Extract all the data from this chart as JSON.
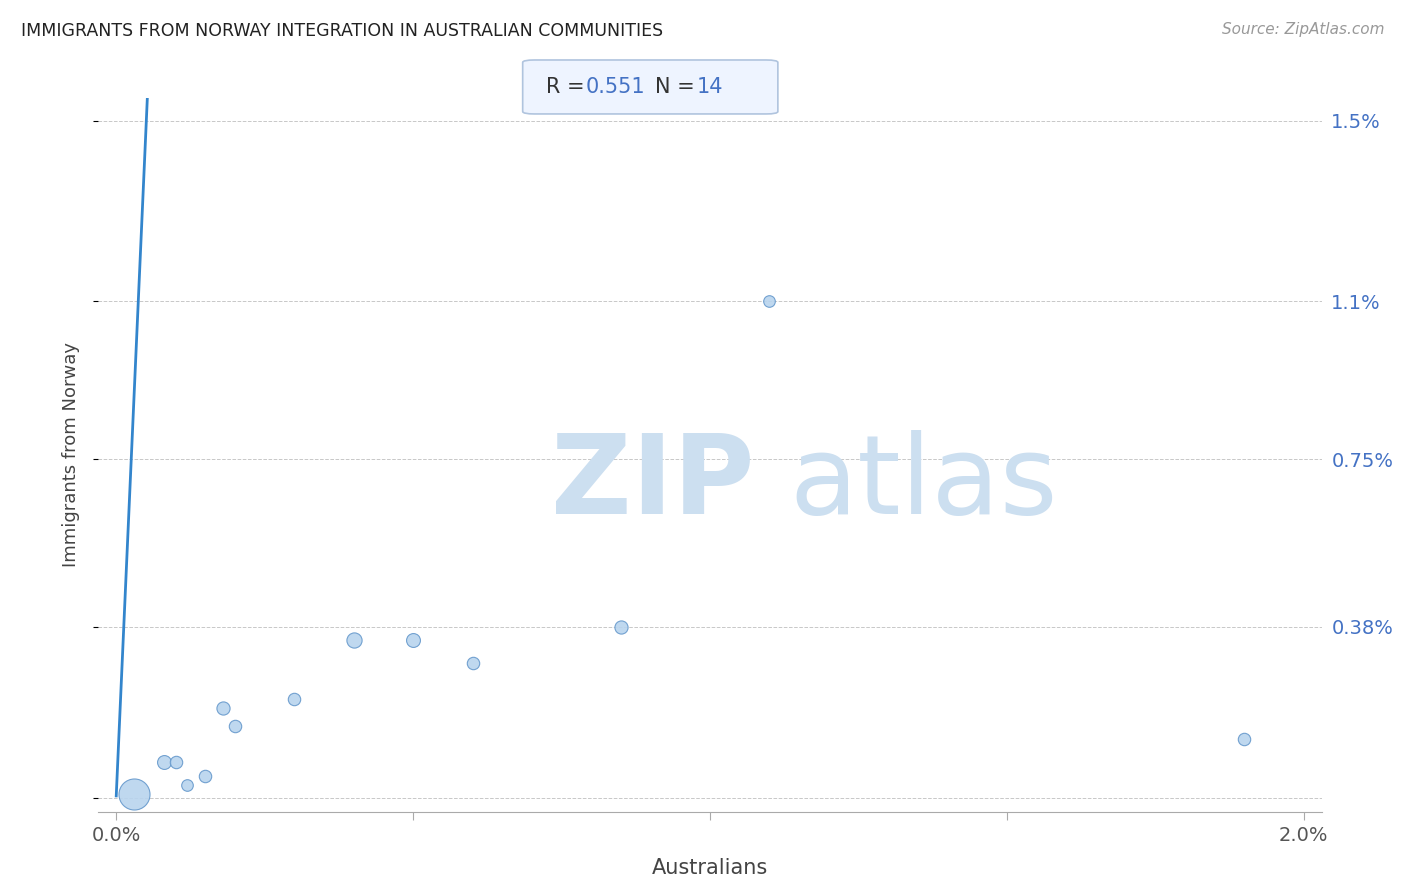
{
  "title": "IMMIGRANTS FROM NORWAY INTEGRATION IN AUSTRALIAN COMMUNITIES",
  "source": "Source: ZipAtlas.com",
  "xlabel": "Australians",
  "ylabel": "Immigrants from Norway",
  "R": 0.551,
  "N": 14,
  "x_min": 0.0,
  "x_max": 0.02,
  "y_min": 0.0,
  "y_max": 0.015,
  "ytick_labels": [
    "",
    "0.38%",
    "0.75%",
    "1.1%",
    "1.5%"
  ],
  "ytick_values": [
    0.0,
    0.0038,
    0.0075,
    0.011,
    0.015
  ],
  "scatter_x": [
    0.0003,
    0.0008,
    0.001,
    0.0012,
    0.0015,
    0.0018,
    0.002,
    0.003,
    0.004,
    0.005,
    0.006,
    0.0085,
    0.011,
    0.019
  ],
  "scatter_y": [
    0.0001,
    0.0008,
    0.0008,
    0.0003,
    0.0005,
    0.002,
    0.0016,
    0.0022,
    0.0035,
    0.0035,
    0.003,
    0.0038,
    0.011,
    0.0013
  ],
  "scatter_sizes": [
    500,
    100,
    80,
    70,
    80,
    90,
    80,
    80,
    120,
    100,
    80,
    90,
    70,
    80
  ],
  "scatter_color": "#b8d4ee",
  "scatter_edge_color": "#6699cc",
  "line_color": "#3385cc",
  "regression_slope": 29.5,
  "regression_intercept": 5e-05,
  "background_color": "#ffffff",
  "grid_color": "#c8c8c8",
  "title_color": "#222222",
  "label_color": "#444444",
  "axis_tick_color": "#666666",
  "tick_label_color_y": "#4472c4",
  "tick_label_color_x": "#555555",
  "watermark_zip_color": "#ccdff0",
  "watermark_atlas_color": "#ccdff0",
  "annotation_box_color": "#eef4ff",
  "annotation_text_color": "#333333",
  "annotation_value_color": "#4472c4"
}
